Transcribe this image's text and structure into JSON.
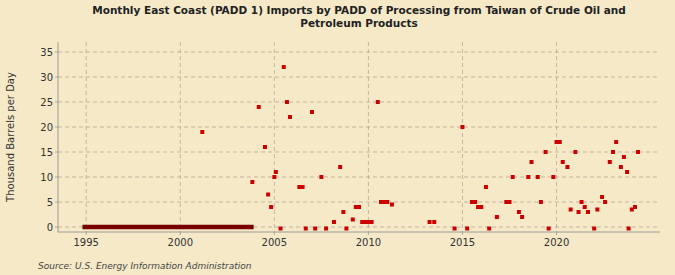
{
  "chart_data": {
    "type": "scatter",
    "title": "Monthly East Coast (PADD 1) Imports by PADD of Processing from Taiwan of Crude Oil and\nPetroleum Products",
    "ylabel": "Thousand Barrels per Day",
    "source": "Source: U.S. Energy Information Administration",
    "xlim": [
      1993.5,
      2025.5
    ],
    "ylim": [
      -1,
      37
    ],
    "xticks": [
      1995,
      2000,
      2005,
      2010,
      2015,
      2020
    ],
    "yticks": [
      0,
      5,
      10,
      15,
      20,
      25,
      30,
      35
    ],
    "grid": true,
    "series": [
      {
        "type": "line",
        "color": "#7a0000",
        "x": [
          1994.8,
          2003.9
        ],
        "values": [
          0,
          0
        ]
      },
      {
        "type": "scatter",
        "color": "#cc0000",
        "marker": "square",
        "x": [
          2001.17,
          2003.83,
          2004.17,
          2004.5,
          2004.67,
          2004.83,
          2005.0,
          2005.08,
          2005.33,
          2005.5,
          2005.67,
          2005.83,
          2006.33,
          2006.5,
          2006.67,
          2007.0,
          2007.17,
          2007.5,
          2007.75,
          2008.17,
          2008.5,
          2008.67,
          2008.83,
          2009.17,
          2009.33,
          2009.5,
          2009.67,
          2009.83,
          2010.0,
          2010.17,
          2010.5,
          2010.67,
          2010.83,
          2011.0,
          2011.25,
          2013.25,
          2013.5,
          2014.58,
          2015.0,
          2015.25,
          2015.5,
          2015.67,
          2015.83,
          2016.0,
          2016.25,
          2016.42,
          2016.83,
          2017.33,
          2017.5,
          2017.67,
          2018.0,
          2018.17,
          2018.5,
          2018.67,
          2019.0,
          2019.17,
          2019.42,
          2019.58,
          2019.83,
          2020.0,
          2020.17,
          2020.33,
          2020.58,
          2020.75,
          2021.0,
          2021.17,
          2021.33,
          2021.5,
          2021.67,
          2022.0,
          2022.17,
          2022.42,
          2022.58,
          2022.83,
          2023.0,
          2023.17,
          2023.42,
          2023.58,
          2023.75,
          2023.83,
          2024.0,
          2024.17,
          2024.33
        ],
        "values": [
          19.0,
          9.0,
          24.0,
          16.0,
          6.5,
          4.0,
          10.0,
          11.0,
          -0.3,
          32.0,
          25.0,
          22.0,
          8.0,
          8.0,
          -0.3,
          23.0,
          -0.3,
          10.0,
          -0.3,
          1.0,
          12.0,
          3.0,
          -0.3,
          1.5,
          4.0,
          4.0,
          1.0,
          1.0,
          1.0,
          1.0,
          25.0,
          5.0,
          5.0,
          5.0,
          4.5,
          1.0,
          1.0,
          -0.3,
          20.0,
          -0.3,
          5.0,
          5.0,
          4.0,
          4.0,
          8.0,
          -0.3,
          2.0,
          5.0,
          5.0,
          10.0,
          3.0,
          2.0,
          10.0,
          13.0,
          10.0,
          5.0,
          15.0,
          -0.3,
          10.0,
          17.0,
          17.0,
          13.0,
          12.0,
          3.5,
          15.0,
          3.0,
          5.0,
          4.0,
          3.0,
          -0.3,
          3.5,
          6.0,
          5.0,
          13.0,
          15.0,
          17.0,
          12.0,
          14.0,
          11.0,
          -0.3,
          3.5,
          4.0,
          15.0
        ]
      }
    ]
  }
}
